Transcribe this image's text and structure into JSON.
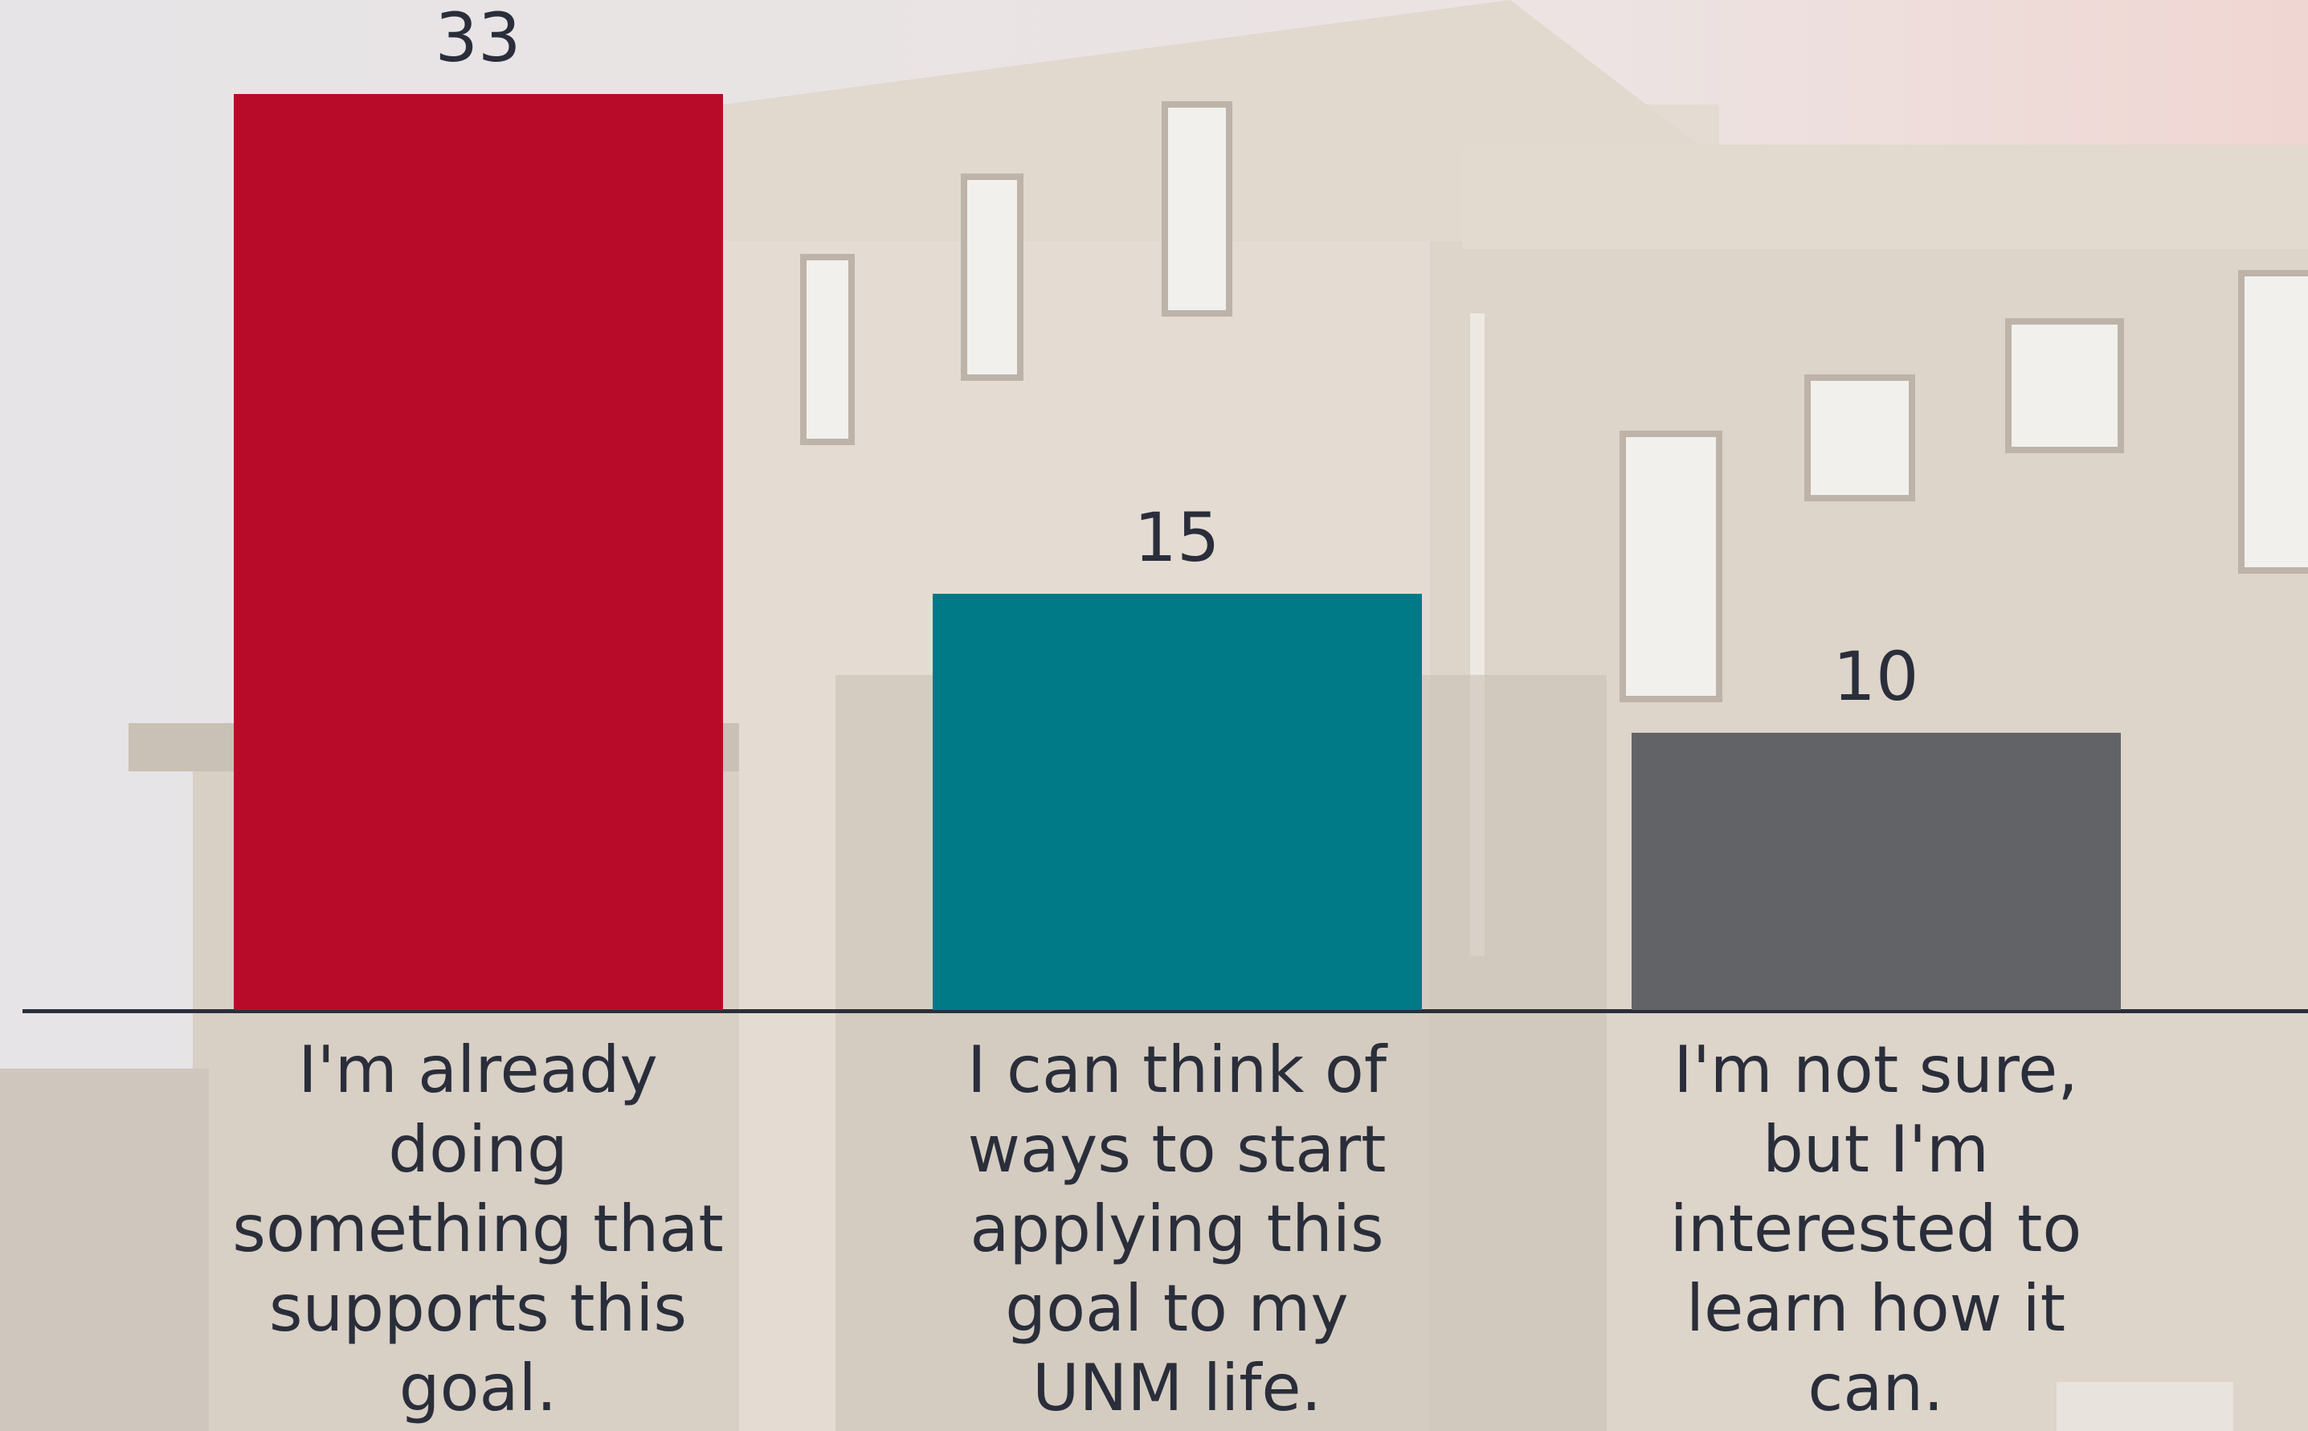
{
  "chart_data": {
    "type": "bar",
    "categories": [
      "I'm already doing something that supports this goal.",
      "I can think of ways to start applying this goal to my UNM life.",
      "I'm not sure, but I'm interested to learn how it can."
    ],
    "values": [
      33,
      15,
      10
    ],
    "colors": [
      "#b80b2a",
      "#007a87",
      "#616366"
    ]
  }
}
